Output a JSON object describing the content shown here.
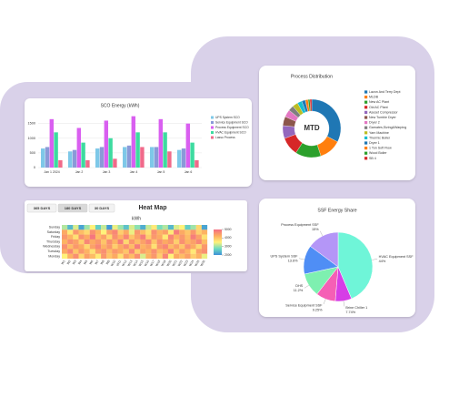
{
  "chart_data": [
    {
      "type": "bar",
      "title": "SCO Energy (kWh)",
      "categories": [
        "Jan 1 2024",
        "Jan 2",
        "Jan 3",
        "Jan 4",
        "Jan 5",
        "Jan 6"
      ],
      "series": [
        {
          "name": "UPS System SCO",
          "color": "#7ec8e8",
          "values": [
            650,
            550,
            650,
            700,
            700,
            600
          ]
        },
        {
          "name": "Service Equipment SCO",
          "color": "#8a9ad8",
          "values": [
            700,
            600,
            700,
            750,
            700,
            650
          ]
        },
        {
          "name": "Process Equipment SCO",
          "color": "#d95ff0",
          "values": [
            1650,
            1350,
            1600,
            1750,
            1650,
            1500
          ]
        },
        {
          "name": "HVAC Equipment SCO",
          "color": "#3ddba0",
          "values": [
            1200,
            850,
            1000,
            1200,
            1200,
            850
          ]
        },
        {
          "name": "Lasso Process",
          "color": "#f06a8a",
          "values": [
            250,
            250,
            300,
            700,
            550,
            250
          ]
        }
      ],
      "ylim": [
        0,
        1800
      ],
      "yticks": [
        0,
        500,
        1000,
        1500
      ],
      "grid": true
    },
    {
      "type": "heatmap",
      "title": "Heat Map",
      "subtitle": "kWh",
      "buttons": [
        "365 DAYS",
        "180 DAYS",
        "30 DAYS"
      ],
      "active_button": 1,
      "x": [
        "W1",
        "W2",
        "W3",
        "W4",
        "W5",
        "W6",
        "W7",
        "W8",
        "W9",
        "W10",
        "W11",
        "W12",
        "W13",
        "W14",
        "W15",
        "W16",
        "W17",
        "W18",
        "W19",
        "W20",
        "W21",
        "W22",
        "W23",
        "W24",
        "W25",
        "W26"
      ],
      "y": [
        "Sunday",
        "Saturday",
        "Friday",
        "Thursday",
        "Wednesday",
        "Tuesday",
        "Monday"
      ],
      "z": [
        [
          3100,
          2400,
          3300,
          2200,
          3000,
          3500,
          2600,
          3200,
          2100,
          3400,
          3000,
          2500,
          3300,
          2900,
          2300,
          3200,
          3600,
          2800,
          3100,
          2400,
          3300,
          3500,
          2600,
          3000,
          3800,
          2200
        ],
        [
          4300,
          3600,
          4500,
          4100,
          3800,
          4600,
          4200,
          3500,
          4400,
          4700,
          3900,
          4300,
          3400,
          4500,
          4100,
          3700,
          4600,
          4200,
          4400,
          3600,
          4800,
          4300,
          4000,
          4500,
          3900,
          4200
        ],
        [
          4500,
          4200,
          3700,
          4600,
          4300,
          4900,
          4100,
          4400,
          3800,
          4600,
          4200,
          4700,
          4000,
          4400,
          4800,
          3900,
          4500,
          4300,
          3600,
          4700,
          4200,
          4500,
          4100,
          4800,
          4400,
          3700
        ],
        [
          4200,
          4600,
          4400,
          3900,
          4700,
          4300,
          4500,
          4000,
          4600,
          4200,
          4800,
          3800,
          4500,
          4100,
          4400,
          4700,
          4000,
          4600,
          4300,
          4500,
          3900,
          4600,
          4200,
          4400,
          4700,
          4100
        ],
        [
          4600,
          4100,
          4500,
          4300,
          3800,
          4400,
          4700,
          4200,
          4500,
          3900,
          4300,
          4600,
          4100,
          4800,
          4200,
          4400,
          3700,
          4500,
          4700,
          4100,
          4400,
          4000,
          4600,
          4300,
          3800,
          4500
        ],
        [
          4300,
          4700,
          4000,
          4500,
          4200,
          3700,
          4400,
          4600,
          4100,
          4500,
          4300,
          4000,
          4700,
          3900,
          4400,
          4200,
          4600,
          4100,
          4300,
          4800,
          4000,
          4500,
          4200,
          3600,
          4400,
          4600
        ],
        [
          3500,
          4200,
          4600,
          3800,
          4400,
          4100,
          3600,
          4500,
          4000,
          4300,
          3700,
          4400,
          4100,
          4600,
          3300,
          4200,
          4500,
          3900,
          4700,
          3500,
          4300,
          4100,
          4400,
          3900,
          4200,
          3400
        ]
      ],
      "zlim": [
        2000,
        5000
      ],
      "zticks": [
        2000,
        3000,
        4000,
        5000
      ],
      "colorscale": [
        "#3b8fd8",
        "#6fdcc0",
        "#fff27a",
        "#fdae61",
        "#f46d83"
      ]
    },
    {
      "type": "donut",
      "title": "Process Distribution",
      "center_label": "MTD",
      "categories": [
        "Lazon And Terry Dept",
        "MLDB",
        "New AC Plant",
        "Old AC Plant",
        "Aseset Compressor",
        "New Tumble Dryer",
        "Dryer 2",
        "Garnates,Sizing&Warping",
        "Yarn Machine",
        "Thermic Boiler",
        "Dryer 1",
        "1 Ton Soft Flow",
        "Wood Boiler",
        "SB 4"
      ],
      "values": [
        32,
        12,
        14,
        10,
        7,
        5,
        4,
        3,
        3,
        2.5,
        2,
        1.5,
        1,
        1
      ],
      "colors": [
        "#1f77b4",
        "#ff7f0e",
        "#2ca02c",
        "#d62728",
        "#9467bd",
        "#8c564b",
        "#e377c2",
        "#7f7f7f",
        "#bcbd22",
        "#17becf",
        "#1f77b4",
        "#ff7f0e",
        "#2ca02c",
        "#d62728"
      ]
    },
    {
      "type": "pie",
      "title": "SSF Energy Share",
      "categories": [
        "HVAC Equipment SSF",
        "Brine Chiller 1",
        "Service Equipment SSF",
        "DHS",
        "UPS System SSF",
        "Process Equipment SSF"
      ],
      "values": [
        44,
        7.74,
        9.25,
        11.2,
        13.6,
        15
      ],
      "value_labels": [
        "44%",
        "7.74%",
        "9.25%",
        "11.2%",
        "13.6%",
        "15%"
      ],
      "colors": [
        "#6ff5d8",
        "#d63ee6",
        "#f55fb5",
        "#7ef0b0",
        "#4f8ef5",
        "#b496f7"
      ]
    }
  ]
}
